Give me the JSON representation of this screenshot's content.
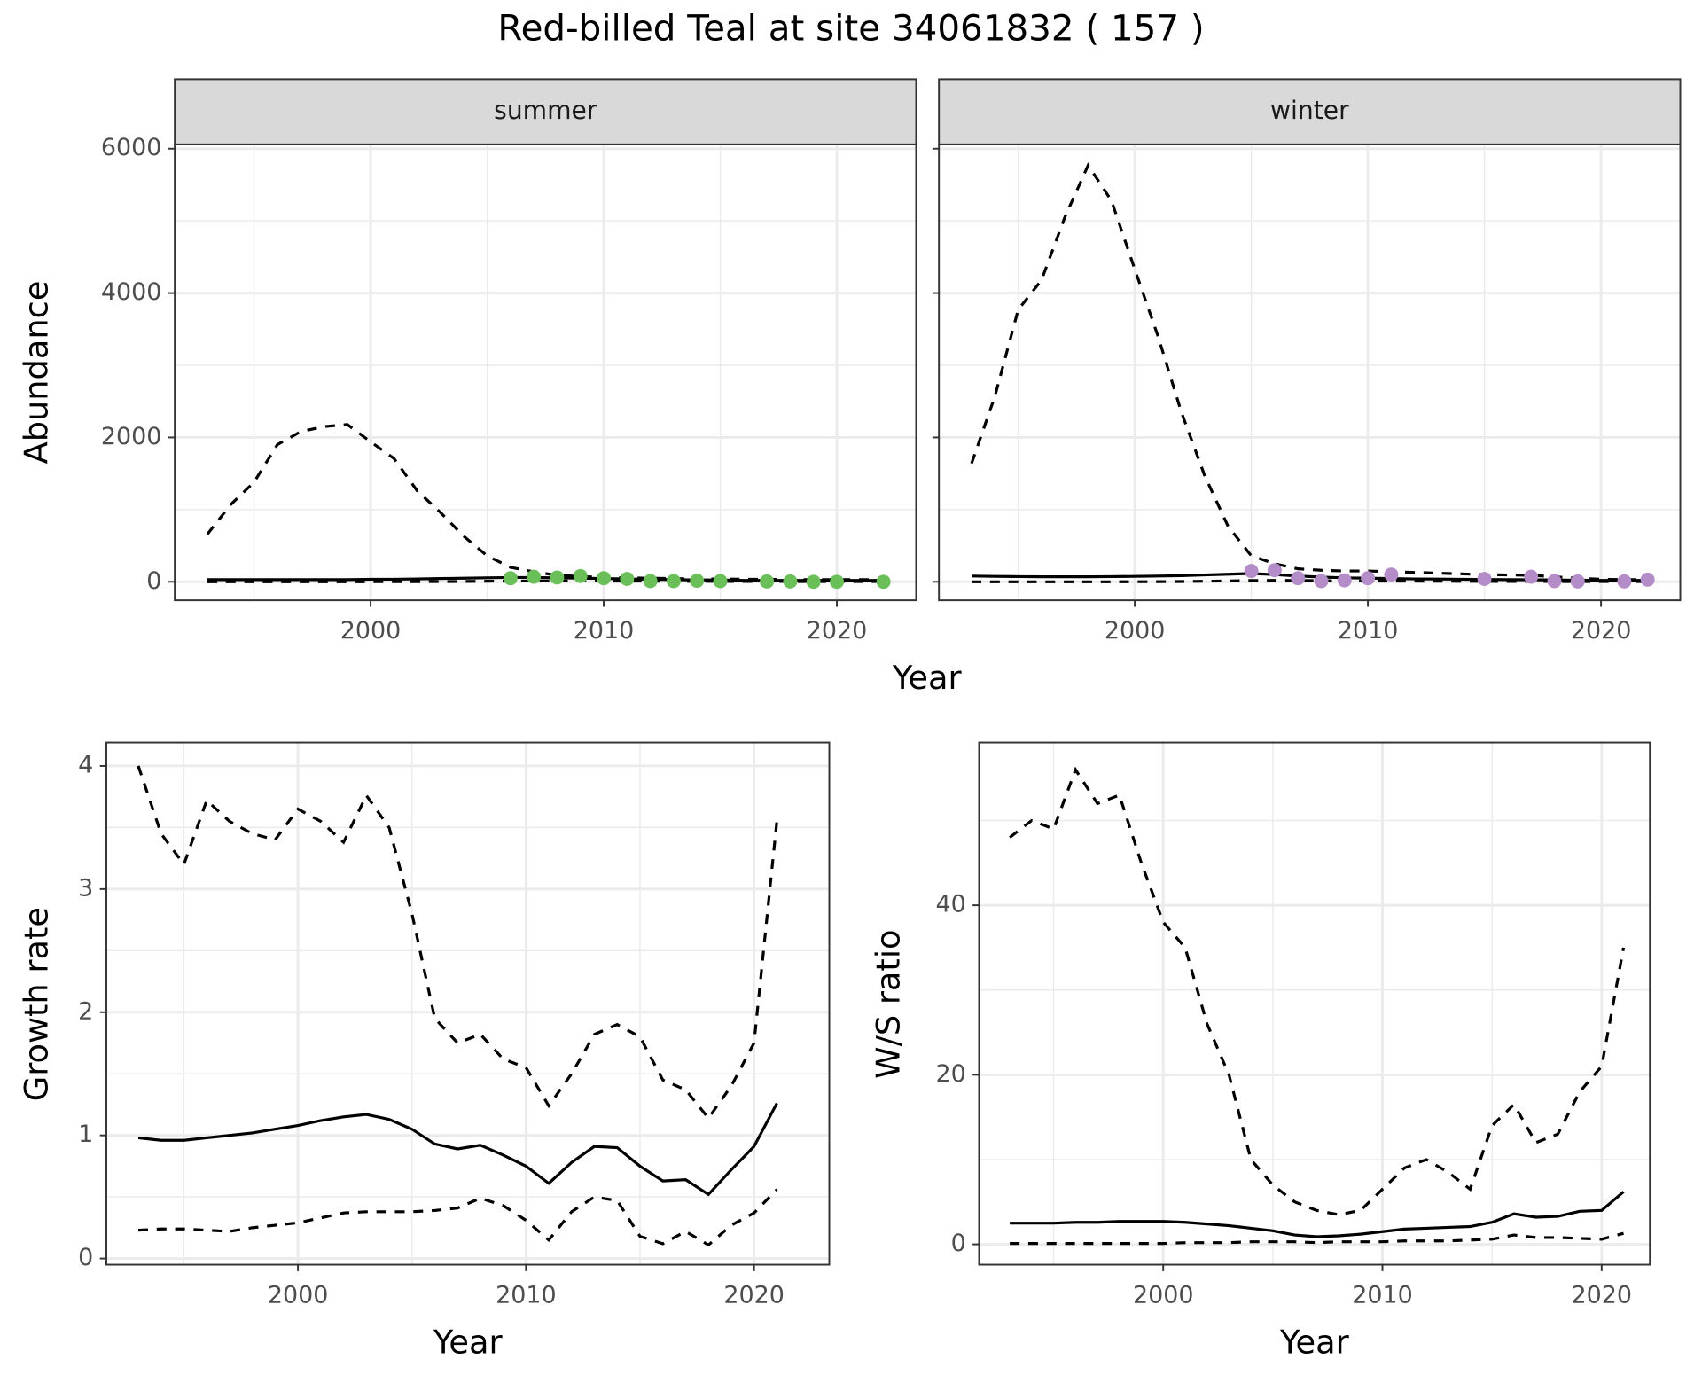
{
  "title": "Red-billed Teal at site 34061832 ( 157 )",
  "chart_data": [
    {
      "type": "line",
      "strip": "summer",
      "xlabel": "Year",
      "ylabel": "Abundance",
      "x": [
        1993,
        1994,
        1995,
        1996,
        1997,
        1998,
        1999,
        2000,
        2001,
        2002,
        2003,
        2004,
        2005,
        2006,
        2007,
        2008,
        2009,
        2010,
        2011,
        2012,
        2013,
        2014,
        2015,
        2016,
        2017,
        2018,
        2019,
        2020,
        2021,
        2022
      ],
      "series": [
        {
          "color": "#000000",
          "line_style": "solid",
          "values": [
            30,
            30,
            30,
            30,
            30,
            30,
            30,
            35,
            35,
            40,
            45,
            50,
            55,
            60,
            60,
            55,
            50,
            45,
            40,
            35,
            30,
            25,
            25,
            20,
            20,
            20,
            20,
            20,
            20,
            20
          ]
        },
        {
          "color": "#000000",
          "line_style": "dashed",
          "values": [
            0,
            0,
            0,
            0,
            0,
            0,
            0,
            1,
            1,
            2,
            3,
            5,
            8,
            10,
            12,
            12,
            12,
            10,
            10,
            8,
            8,
            6,
            6,
            5,
            5,
            4,
            4,
            3,
            3,
            3
          ]
        },
        {
          "color": "#000000",
          "line_style": "dashed",
          "values": [
            660,
            1070,
            1380,
            1900,
            2080,
            2150,
            2180,
            1940,
            1710,
            1260,
            960,
            630,
            360,
            200,
            140,
            90,
            75,
            60,
            55,
            50,
            45,
            40,
            40,
            35,
            35,
            30,
            30,
            30,
            30,
            30
          ]
        },
        {
          "color": "#6bbf59",
          "marker": "point",
          "x": [
            2006,
            2007,
            2008,
            2009,
            2010,
            2011,
            2012,
            2013,
            2014,
            2015,
            2017,
            2018,
            2019,
            2020,
            2022
          ],
          "values": [
            50,
            70,
            60,
            80,
            50,
            40,
            10,
            10,
            15,
            10,
            5,
            5,
            0,
            0,
            0
          ]
        }
      ],
      "xlim": [
        1991.6,
        2023.4
      ],
      "xticks": [
        2000,
        2010,
        2020
      ],
      "x_minor_ticks": [
        1995,
        2005,
        2015
      ],
      "ylim": [
        -256,
        6060
      ],
      "yticks": [
        0,
        2000,
        4000,
        6000
      ],
      "y_minor_ticks": [
        1000,
        3000,
        5000
      ],
      "ytick_labels": true,
      "grid": true
    },
    {
      "type": "line",
      "strip": "winter",
      "x": [
        1993,
        1994,
        1995,
        1996,
        1997,
        1998,
        1999,
        2000,
        2001,
        2002,
        2003,
        2004,
        2005,
        2006,
        2007,
        2008,
        2009,
        2010,
        2011,
        2012,
        2013,
        2014,
        2015,
        2016,
        2017,
        2018,
        2019,
        2020,
        2021,
        2022
      ],
      "series": [
        {
          "color": "#000000",
          "line_style": "solid",
          "values": [
            80,
            75,
            72,
            70,
            70,
            70,
            72,
            75,
            80,
            85,
            95,
            105,
            115,
            100,
            80,
            65,
            55,
            50,
            45,
            40,
            38,
            35,
            32,
            30,
            28,
            25,
            22,
            20,
            20,
            20
          ]
        },
        {
          "color": "#000000",
          "line_style": "dashed",
          "values": [
            0,
            0,
            0,
            0,
            0,
            0,
            0,
            1,
            2,
            4,
            8,
            12,
            18,
            20,
            18,
            15,
            12,
            10,
            10,
            9,
            8,
            7,
            6,
            5,
            5,
            4,
            4,
            3,
            3,
            3
          ]
        },
        {
          "color": "#000000",
          "line_style": "dashed",
          "values": [
            1640,
            2570,
            3770,
            4180,
            5050,
            5770,
            5280,
            4330,
            3400,
            2350,
            1470,
            770,
            360,
            250,
            180,
            160,
            150,
            150,
            140,
            130,
            120,
            110,
            100,
            95,
            90,
            70,
            50,
            35,
            30,
            30
          ]
        },
        {
          "color": "#b48cc8",
          "marker": "point",
          "x": [
            2005,
            2006,
            2007,
            2008,
            2009,
            2010,
            2011,
            2015,
            2017,
            2018,
            2019,
            2021,
            2022
          ],
          "values": [
            150,
            160,
            50,
            10,
            20,
            50,
            100,
            40,
            70,
            10,
            5,
            5,
            30
          ]
        }
      ],
      "xlim": [
        1991.6,
        2023.4
      ],
      "xticks": [
        2000,
        2010,
        2020
      ],
      "x_minor_ticks": [
        1995,
        2005,
        2015
      ],
      "ylim": [
        -256,
        6060
      ],
      "yticks": [
        0,
        2000,
        4000,
        6000
      ],
      "y_minor_ticks": [
        1000,
        3000,
        5000
      ],
      "ytick_labels": false,
      "grid": true
    },
    {
      "type": "line",
      "xlabel": "Year",
      "ylabel": "Growth rate",
      "x": [
        1993,
        1994,
        1995,
        1996,
        1997,
        1998,
        1999,
        2000,
        2001,
        2002,
        2003,
        2004,
        2005,
        2006,
        2007,
        2008,
        2009,
        2010,
        2011,
        2012,
        2013,
        2014,
        2015,
        2016,
        2017,
        2018,
        2019,
        2020,
        2021
      ],
      "series": [
        {
          "color": "#000000",
          "line_style": "solid",
          "values": [
            0.98,
            0.96,
            0.96,
            0.98,
            1.0,
            1.02,
            1.05,
            1.08,
            1.12,
            1.15,
            1.17,
            1.13,
            1.05,
            0.93,
            0.89,
            0.92,
            0.84,
            0.75,
            0.61,
            0.78,
            0.91,
            0.9,
            0.75,
            0.63,
            0.64,
            0.52,
            0.72,
            0.91,
            1.26
          ]
        },
        {
          "color": "#000000",
          "line_style": "dashed",
          "values": [
            4.0,
            3.45,
            3.2,
            3.72,
            3.55,
            3.45,
            3.4,
            3.65,
            3.55,
            3.38,
            3.76,
            3.5,
            2.8,
            1.95,
            1.75,
            1.82,
            1.62,
            1.55,
            1.24,
            1.5,
            1.82,
            1.9,
            1.8,
            1.45,
            1.37,
            1.14,
            1.4,
            1.75,
            3.55
          ]
        },
        {
          "color": "#000000",
          "line_style": "dashed",
          "values": [
            0.23,
            0.24,
            0.24,
            0.23,
            0.22,
            0.25,
            0.27,
            0.29,
            0.33,
            0.37,
            0.38,
            0.38,
            0.38,
            0.39,
            0.41,
            0.49,
            0.43,
            0.31,
            0.15,
            0.38,
            0.5,
            0.47,
            0.18,
            0.12,
            0.22,
            0.11,
            0.27,
            0.37,
            0.56
          ]
        }
      ],
      "xlim": [
        1991.6,
        2023.3
      ],
      "xticks": [
        2000,
        2010,
        2020
      ],
      "x_minor_ticks": [
        1995,
        2005,
        2015
      ],
      "ylim": [
        -0.05,
        4.19
      ],
      "yticks": [
        0,
        1,
        2,
        3,
        4
      ],
      "y_minor_ticks": [
        0.5,
        1.5,
        2.5,
        3.5
      ],
      "ytick_labels": true,
      "grid": true
    },
    {
      "type": "line",
      "xlabel": "Year",
      "ylabel": "W/S ratio",
      "x": [
        1993,
        1994,
        1995,
        1996,
        1997,
        1998,
        1999,
        2000,
        2001,
        2002,
        2003,
        2004,
        2005,
        2006,
        2007,
        2008,
        2009,
        2010,
        2011,
        2012,
        2013,
        2014,
        2015,
        2016,
        2017,
        2018,
        2019,
        2020,
        2021
      ],
      "series": [
        {
          "color": "#000000",
          "line_style": "solid",
          "values": [
            2.5,
            2.5,
            2.5,
            2.6,
            2.6,
            2.7,
            2.7,
            2.7,
            2.6,
            2.4,
            2.2,
            1.9,
            1.6,
            1.1,
            0.9,
            1.0,
            1.2,
            1.5,
            1.8,
            1.9,
            2.0,
            2.1,
            2.6,
            3.6,
            3.2,
            3.3,
            3.9,
            4.0,
            6.2
          ]
        },
        {
          "color": "#000000",
          "line_style": "dashed",
          "values": [
            48,
            50,
            49,
            56,
            52,
            53,
            45,
            38,
            35,
            26,
            20,
            10,
            7,
            5,
            4,
            3.5,
            4,
            6.5,
            9,
            10,
            8.5,
            6.5,
            14,
            16.5,
            12,
            13,
            18,
            21,
            35
          ]
        },
        {
          "color": "#000000",
          "line_style": "dashed",
          "values": [
            0.1,
            0.1,
            0.1,
            0.1,
            0.1,
            0.1,
            0.1,
            0.1,
            0.2,
            0.2,
            0.2,
            0.3,
            0.3,
            0.3,
            0.2,
            0.3,
            0.3,
            0.3,
            0.4,
            0.4,
            0.4,
            0.5,
            0.6,
            1.1,
            0.8,
            0.8,
            0.7,
            0.6,
            1.3
          ]
        }
      ],
      "xlim": [
        1991.6,
        2022.2
      ],
      "xticks": [
        2000,
        2010,
        2020
      ],
      "x_minor_ticks": [
        1995,
        2005,
        2015
      ],
      "ylim": [
        -2.4,
        59.2
      ],
      "yticks": [
        0,
        20,
        40
      ],
      "y_minor_ticks": [
        10,
        30,
        50
      ],
      "ytick_labels": true,
      "grid": true
    }
  ]
}
